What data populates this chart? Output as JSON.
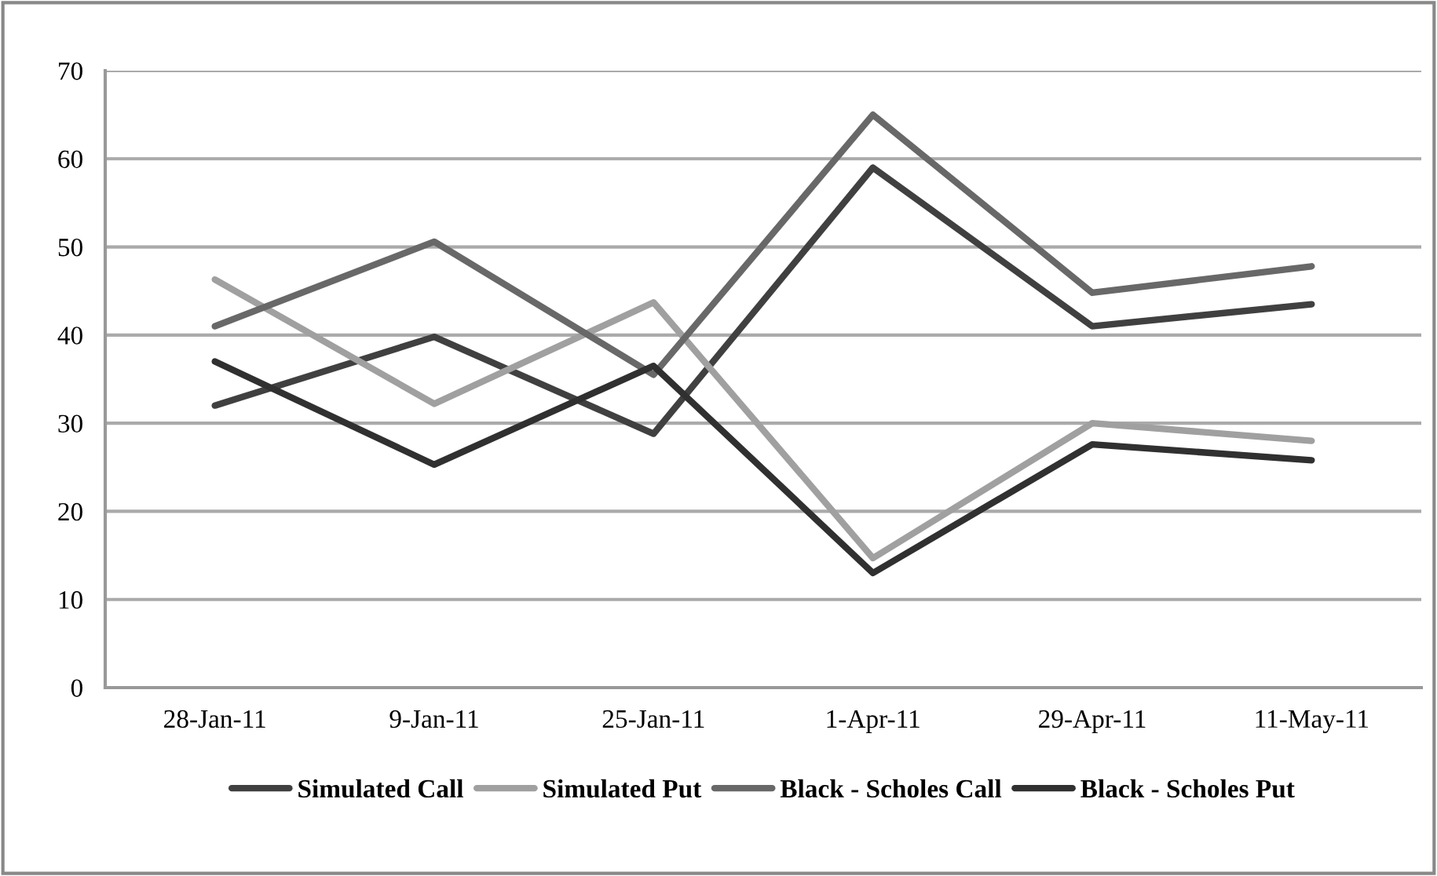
{
  "chart_data": {
    "type": "line",
    "categories": [
      "28-Jan-11",
      "9-Jan-11",
      "25-Jan-11",
      "1-Apr-11",
      "29-Apr-11",
      "11-May-11"
    ],
    "series": [
      {
        "name": "Simulated Call",
        "color": "#404040",
        "values": [
          32,
          39.8,
          28.8,
          59,
          41,
          43.5
        ]
      },
      {
        "name": "Simulated Put",
        "color": "#a0a0a0",
        "values": [
          46.3,
          32.2,
          43.7,
          14.7,
          30,
          28
        ]
      },
      {
        "name": "Black - Scholes Call",
        "color": "#686868",
        "values": [
          41,
          50.6,
          35.5,
          65,
          44.8,
          47.8
        ]
      },
      {
        "name": "Black - Scholes Put",
        "color": "#303030",
        "values": [
          37,
          25.3,
          36.5,
          13,
          27.6,
          25.8
        ]
      }
    ],
    "ylim": [
      0,
      70
    ],
    "yticks": [
      0,
      10,
      20,
      30,
      40,
      50,
      60,
      70
    ],
    "grid": "y",
    "legend": "bottom",
    "marker": "none",
    "line_style": "solid"
  }
}
